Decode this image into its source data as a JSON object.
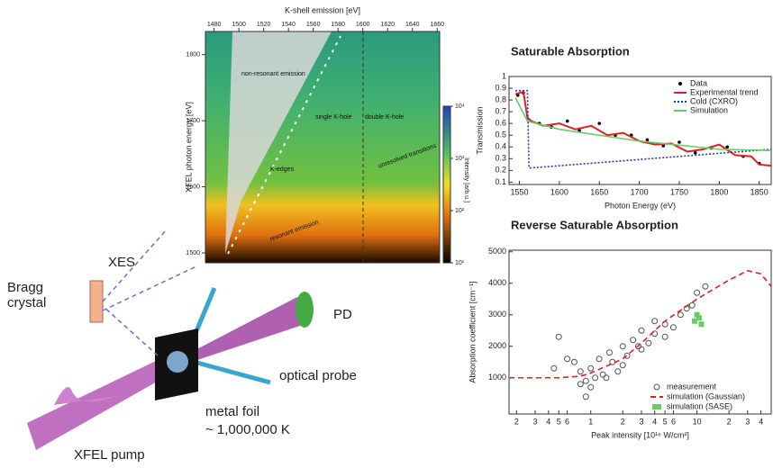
{
  "diagram": {
    "xes": "XES",
    "bragg": "Bragg\ncrystal",
    "pd": "PD",
    "probe": "optical probe",
    "foil": "metal foil",
    "temp": "~ 1,000,000 K",
    "pump": "XFEL pump"
  },
  "chart_data": [
    {
      "type": "heatmap",
      "title": "K-shell emission [eV]",
      "ylabel": "XFEL photon energy [eV]",
      "colorbar_label": "Intensity [arb.u.]",
      "xlim": [
        1473,
        1662
      ],
      "xticks": [
        1480,
        1500,
        1520,
        1540,
        1560,
        1580,
        1600,
        1620,
        1640,
        1660
      ],
      "ylim": [
        1485,
        1835
      ],
      "yticks": [
        1500,
        1600,
        1700,
        1800
      ],
      "colorbar_lim": [
        1,
        4
      ],
      "colorbar_ticks": [
        {
          "value": 1,
          "label": "10¹"
        },
        {
          "value": 2,
          "label": "10²"
        },
        {
          "value": 3,
          "label": "10³"
        },
        {
          "value": 4,
          "label": "10⁴"
        }
      ],
      "annotations": [
        "non-resonant emission",
        "single K-hole",
        "double K-hole",
        "K-edges",
        "resonant emission",
        "unresolved transitions"
      ]
    },
    {
      "type": "line",
      "title": "Saturable Absorption",
      "xlabel": "Photon Energy (eV)",
      "ylabel": "Transmission",
      "xlim": [
        1537,
        1865
      ],
      "xticks": [
        1550,
        1600,
        1650,
        1700,
        1750,
        1800,
        1850
      ],
      "ylim": [
        0.08,
        1.0
      ],
      "yticks": [
        0.1,
        0.2,
        0.3,
        0.4,
        0.5,
        0.6,
        0.7,
        0.8,
        0.9,
        1
      ],
      "series": [
        {
          "name": "Data",
          "color": "#000000",
          "style": "markers",
          "x": [
            1548,
            1555,
            1575,
            1590,
            1610,
            1625,
            1650,
            1670,
            1690,
            1710,
            1730,
            1750,
            1770,
            1790,
            1810,
            1830,
            1850
          ],
          "values": [
            0.84,
            0.86,
            0.6,
            0.57,
            0.62,
            0.54,
            0.6,
            0.5,
            0.5,
            0.46,
            0.41,
            0.44,
            0.35,
            0.39,
            0.4,
            0.32,
            0.26
          ]
        },
        {
          "name": "Experimental trend",
          "color": "#e02020",
          "style": "line",
          "x": [
            1545,
            1555,
            1560,
            1565,
            1580,
            1600,
            1620,
            1640,
            1660,
            1680,
            1700,
            1720,
            1740,
            1760,
            1780,
            1800,
            1820,
            1840,
            1850,
            1865
          ],
          "values": [
            0.85,
            0.87,
            0.65,
            0.62,
            0.58,
            0.6,
            0.55,
            0.58,
            0.5,
            0.52,
            0.45,
            0.42,
            0.43,
            0.36,
            0.38,
            0.42,
            0.33,
            0.32,
            0.25,
            0.24
          ]
        },
        {
          "name": "Cold (CXRO)",
          "color": "#2233cc",
          "style": "dotted",
          "x": [
            1545,
            1560,
            1562,
            1865
          ],
          "values": [
            0.88,
            0.88,
            0.22,
            0.38
          ]
        },
        {
          "name": "Simulation",
          "color": "#66cc66",
          "style": "line",
          "x": [
            1545,
            1560,
            1600,
            1700,
            1800,
            1865
          ],
          "values": [
            0.82,
            0.62,
            0.55,
            0.45,
            0.38,
            0.37
          ]
        }
      ]
    },
    {
      "type": "scatter",
      "title": "Reverse Saturable Absorption",
      "xlabel": "Peak intensity [10¹⁶ W/cm²]",
      "ylabel": "Absorption coefficient [cm⁻¹]",
      "xlog": true,
      "xlim": [
        0.17,
        50
      ],
      "xticks": [
        {
          "value": 0.2,
          "label": "2"
        },
        {
          "value": 0.3,
          "label": "3"
        },
        {
          "value": 0.4,
          "label": "4"
        },
        {
          "value": 0.5,
          "label": "5"
        },
        {
          "value": 0.6,
          "label": "6"
        },
        1,
        {
          "value": 2,
          "label": "2"
        },
        {
          "value": 3,
          "label": "3"
        },
        {
          "value": 4,
          "label": "4"
        },
        {
          "value": 5,
          "label": "5"
        },
        {
          "value": 6,
          "label": "6"
        },
        10,
        {
          "value": 20,
          "label": "2"
        },
        {
          "value": 30,
          "label": "3"
        },
        {
          "value": 40,
          "label": "4"
        }
      ],
      "ylim": [
        -150,
        5050
      ],
      "yticks": [
        1000,
        2000,
        3000,
        4000,
        5000
      ],
      "series": [
        {
          "name": "measurement",
          "color": "#555555",
          "style": "circles",
          "x": [
            0.5,
            0.6,
            0.7,
            0.8,
            0.8,
            0.9,
            1,
            1,
            1.1,
            1.2,
            1.3,
            1.5,
            1.6,
            1.8,
            2,
            2,
            2.2,
            2.5,
            3,
            3,
            3.5,
            4,
            4,
            5,
            5,
            6,
            7,
            8,
            9,
            10,
            12,
            0.45,
            0.9,
            1.4,
            2.8
          ],
          "values": [
            2300,
            1600,
            1500,
            1200,
            800,
            900,
            1300,
            700,
            1000,
            1600,
            1100,
            1800,
            1500,
            1200,
            2000,
            1400,
            1700,
            2200,
            2500,
            1900,
            2100,
            2400,
            2800,
            2300,
            2700,
            2600,
            3000,
            3200,
            3300,
            3700,
            3900,
            1300,
            400,
            1000,
            2000
          ]
        },
        {
          "name": "simulation (Gaussian)",
          "color": "#e02020",
          "style": "dashed",
          "x": [
            0.17,
            0.5,
            0.8,
            1,
            2,
            3,
            5,
            10,
            20,
            30,
            40,
            50
          ],
          "values": [
            1000,
            1000,
            1050,
            1150,
            1600,
            2100,
            2800,
            3500,
            4100,
            4400,
            4300,
            3900
          ]
        },
        {
          "name": "simulation (SASE)",
          "color": "#66cc66",
          "style": "squares",
          "x": [
            9.5,
            10,
            10.5,
            11
          ],
          "values": [
            2800,
            3000,
            2900,
            2700
          ]
        }
      ]
    }
  ]
}
